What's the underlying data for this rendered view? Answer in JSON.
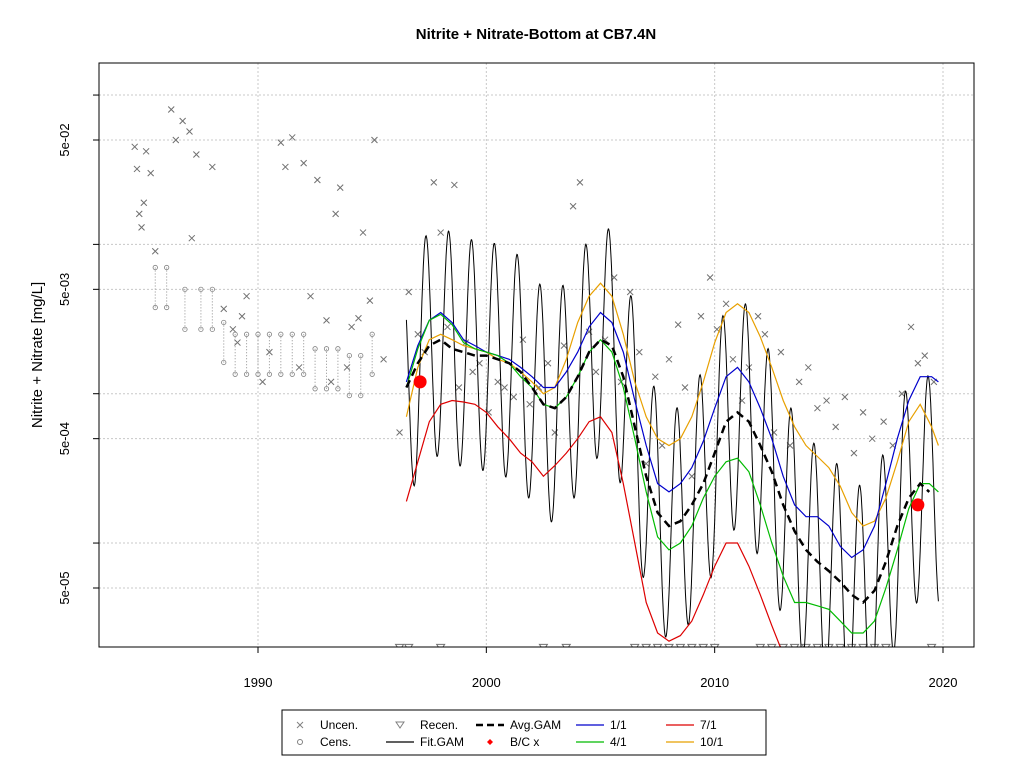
{
  "chart_data": {
    "type": "line",
    "title": "Nitrite + Nitrate-Bottom at CB7.4N",
    "ylabel": "Nitrite + Nitrate [mg/L]",
    "xlabel": "",
    "x_ticks": [
      1990,
      2000,
      2010,
      2020
    ],
    "y_ticks": [
      "5e-05",
      "5e-04",
      "5e-03",
      "5e-02"
    ],
    "y_scale": "log",
    "grid": true,
    "legend": [
      {
        "label": "Uncen.",
        "color": "#808080",
        "symbol": "x"
      },
      {
        "label": "Recen.",
        "color": "#808080",
        "symbol": "triangle-down"
      },
      {
        "label": "Avg.GAM",
        "color": "#000000",
        "symbol": "dash-thick"
      },
      {
        "label": "1/1",
        "color": "#0000cc",
        "symbol": "line"
      },
      {
        "label": "7/1",
        "color": "#dd0000",
        "symbol": "line"
      },
      {
        "label": "Cens.",
        "color": "#808080",
        "symbol": "circle"
      },
      {
        "label": "Fit.GAM",
        "color": "#000000",
        "symbol": "line"
      },
      {
        "label": "B/C x",
        "color": "#ff0000",
        "symbol": "diamond"
      },
      {
        "label": "4/1",
        "color": "#00bb00",
        "symbol": "line"
      },
      {
        "label": "10/1",
        "color": "#e8a000",
        "symbol": "line"
      }
    ],
    "uncensored": [
      [
        1984.6,
        0.045
      ],
      [
        1984.7,
        0.032
      ],
      [
        1984.8,
        0.016
      ],
      [
        1984.9,
        0.013
      ],
      [
        1985.0,
        0.019
      ],
      [
        1985.1,
        0.042
      ],
      [
        1985.3,
        0.03
      ],
      [
        1985.5,
        0.009
      ],
      [
        1986.2,
        0.08
      ],
      [
        1986.4,
        0.05
      ],
      [
        1986.7,
        0.067
      ],
      [
        1987.0,
        0.057
      ],
      [
        1987.1,
        0.011
      ],
      [
        1987.3,
        0.04
      ],
      [
        1988.0,
        0.033
      ],
      [
        1988.5,
        0.0037
      ],
      [
        1988.9,
        0.0027
      ],
      [
        1989.1,
        0.0022
      ],
      [
        1989.3,
        0.0033
      ],
      [
        1989.5,
        0.0045
      ],
      [
        1990.2,
        0.0012
      ],
      [
        1990.5,
        0.0019
      ],
      [
        1991.0,
        0.048
      ],
      [
        1991.2,
        0.033
      ],
      [
        1991.5,
        0.052
      ],
      [
        1991.8,
        0.0015
      ],
      [
        1992.0,
        0.035
      ],
      [
        1992.3,
        0.0045
      ],
      [
        1992.6,
        0.027
      ],
      [
        1993.0,
        0.0031
      ],
      [
        1993.2,
        0.0012
      ],
      [
        1993.4,
        0.016
      ],
      [
        1993.6,
        0.024
      ],
      [
        1993.9,
        0.0015
      ],
      [
        1994.1,
        0.0028
      ],
      [
        1994.4,
        0.0032
      ],
      [
        1994.6,
        0.012
      ],
      [
        1994.9,
        0.0042
      ],
      [
        1995.1,
        0.05
      ],
      [
        1995.5,
        0.0017
      ],
      [
        1996.2,
        0.00055
      ],
      [
        1996.6,
        0.0048
      ],
      [
        1997.0,
        0.0025
      ],
      [
        1997.3,
        0.0019
      ],
      [
        1997.7,
        0.026
      ],
      [
        1998.0,
        0.012
      ],
      [
        1998.3,
        0.0028
      ],
      [
        1998.6,
        0.025
      ],
      [
        1998.8,
        0.0011
      ],
      [
        1999.1,
        0.0022
      ],
      [
        1999.4,
        0.0014
      ],
      [
        1999.7,
        0.0016
      ],
      [
        2000.1,
        0.00075
      ],
      [
        2000.5,
        0.0012
      ],
      [
        2000.8,
        0.0011
      ],
      [
        2001.2,
        0.00095
      ],
      [
        2001.6,
        0.0023
      ],
      [
        2001.9,
        0.00085
      ],
      [
        2002.3,
        0.0011
      ],
      [
        2002.7,
        0.0016
      ],
      [
        2003.0,
        0.00055
      ],
      [
        2003.4,
        0.0021
      ],
      [
        2003.8,
        0.018
      ],
      [
        2004.1,
        0.026
      ],
      [
        2004.5,
        0.0026
      ],
      [
        2004.8,
        0.0014
      ],
      [
        2005.2,
        0.0023
      ],
      [
        2005.6,
        0.006
      ],
      [
        2005.9,
        0.0012
      ],
      [
        2006.3,
        0.0048
      ],
      [
        2006.7,
        0.0019
      ],
      [
        2007.0,
        0.00034
      ],
      [
        2007.4,
        0.0013
      ],
      [
        2007.7,
        0.00045
      ],
      [
        2008.0,
        0.0017
      ],
      [
        2008.4,
        0.0029
      ],
      [
        2008.7,
        0.0011
      ],
      [
        2009.0,
        0.00028
      ],
      [
        2009.4,
        0.0033
      ],
      [
        2009.8,
        0.006
      ],
      [
        2010.1,
        0.0027
      ],
      [
        2010.5,
        0.004
      ],
      [
        2010.8,
        0.0017
      ],
      [
        2011.2,
        0.0009
      ],
      [
        2011.5,
        0.0015
      ],
      [
        2011.9,
        0.0033
      ],
      [
        2012.2,
        0.0025
      ],
      [
        2012.6,
        0.00055
      ],
      [
        2012.9,
        0.0019
      ],
      [
        2013.3,
        0.00045
      ],
      [
        2013.7,
        0.0012
      ],
      [
        2014.1,
        0.0015
      ],
      [
        2014.5,
        0.0008
      ],
      [
        2014.9,
        0.0009
      ],
      [
        2015.3,
        0.0006
      ],
      [
        2015.7,
        0.00095
      ],
      [
        2016.1,
        0.0004
      ],
      [
        2016.5,
        0.00075
      ],
      [
        2016.9,
        0.0005
      ],
      [
        2017.4,
        0.00065
      ],
      [
        2017.8,
        0.00045
      ],
      [
        2018.2,
        0.001
      ],
      [
        2018.6,
        0.0028
      ],
      [
        2018.9,
        0.0016
      ],
      [
        2019.2,
        0.0018
      ],
      [
        2019.6,
        0.0012
      ]
    ],
    "censored": [
      [
        1985.5,
        0.007
      ],
      [
        1986.0,
        0.007
      ],
      [
        1986.8,
        0.005
      ],
      [
        1987.5,
        0.005
      ],
      [
        1988.0,
        0.005
      ],
      [
        1988.5,
        0.003
      ],
      [
        1989.0,
        0.0025
      ],
      [
        1989.5,
        0.0025
      ],
      [
        1990.0,
        0.0025
      ],
      [
        1990.5,
        0.0025
      ],
      [
        1991.0,
        0.0025
      ],
      [
        1991.5,
        0.0025
      ],
      [
        1992.0,
        0.0025
      ],
      [
        1992.5,
        0.002
      ],
      [
        1993.0,
        0.002
      ],
      [
        1993.5,
        0.002
      ],
      [
        1994.0,
        0.0018
      ],
      [
        1994.5,
        0.0018
      ],
      [
        1995.0,
        0.0025
      ]
    ],
    "recensored": [
      [
        1996.2,
        2e-05
      ],
      [
        1996.6,
        2e-05
      ],
      [
        1998.0,
        2e-05
      ],
      [
        2002.5,
        2e-05
      ],
      [
        2003.5,
        2e-05
      ],
      [
        2006.5,
        2e-05
      ],
      [
        2007.0,
        2e-05
      ],
      [
        2007.5,
        2e-05
      ],
      [
        2008.0,
        2e-05
      ],
      [
        2008.5,
        2e-05
      ],
      [
        2009.0,
        2e-05
      ],
      [
        2009.5,
        2e-05
      ],
      [
        2010.0,
        2e-05
      ],
      [
        2012.0,
        2e-05
      ],
      [
        2012.5,
        2e-05
      ],
      [
        2013.0,
        2e-05
      ],
      [
        2013.5,
        2e-05
      ],
      [
        2014.0,
        2e-05
      ],
      [
        2014.5,
        2e-05
      ],
      [
        2015.0,
        2e-05
      ],
      [
        2015.5,
        2e-05
      ],
      [
        2016.0,
        2e-05
      ],
      [
        2016.5,
        2e-05
      ],
      [
        2017.0,
        2e-05
      ],
      [
        2017.5,
        2e-05
      ],
      [
        2019.5,
        2e-05
      ]
    ],
    "avg_gam": [
      [
        1996.5,
        0.0011
      ],
      [
        1997.0,
        0.0016
      ],
      [
        1997.5,
        0.0021
      ],
      [
        1998.0,
        0.0023
      ],
      [
        1998.5,
        0.002
      ],
      [
        1999.0,
        0.0019
      ],
      [
        1999.5,
        0.0018
      ],
      [
        2000.0,
        0.0018
      ],
      [
        2000.5,
        0.0017
      ],
      [
        2001.0,
        0.0016
      ],
      [
        2001.5,
        0.0014
      ],
      [
        2002.0,
        0.0011
      ],
      [
        2002.5,
        0.00085
      ],
      [
        2003.0,
        0.0008
      ],
      [
        2003.5,
        0.00095
      ],
      [
        2004.0,
        0.0013
      ],
      [
        2004.5,
        0.0019
      ],
      [
        2005.0,
        0.0023
      ],
      [
        2005.5,
        0.0021
      ],
      [
        2006.0,
        0.0013
      ],
      [
        2006.5,
        0.0006
      ],
      [
        2007.0,
        0.00028
      ],
      [
        2007.5,
        0.00016
      ],
      [
        2008.0,
        0.00013
      ],
      [
        2008.5,
        0.00014
      ],
      [
        2009.0,
        0.00018
      ],
      [
        2009.5,
        0.00025
      ],
      [
        2010.0,
        0.0004
      ],
      [
        2010.5,
        0.00065
      ],
      [
        2011.0,
        0.00075
      ],
      [
        2011.5,
        0.00065
      ],
      [
        2012.0,
        0.00045
      ],
      [
        2012.5,
        0.0003
      ],
      [
        2013.0,
        0.00018
      ],
      [
        2013.5,
        0.00012
      ],
      [
        2014.0,
        9e-05
      ],
      [
        2014.5,
        7.5e-05
      ],
      [
        2015.0,
        6.5e-05
      ],
      [
        2015.5,
        5.5e-05
      ],
      [
        2016.0,
        4.5e-05
      ],
      [
        2016.5,
        4e-05
      ],
      [
        2017.0,
        4.8e-05
      ],
      [
        2017.5,
        7.5e-05
      ],
      [
        2018.0,
        0.00013
      ],
      [
        2018.5,
        0.0002
      ],
      [
        2019.0,
        0.00025
      ],
      [
        2019.4,
        0.00022
      ]
    ],
    "series_1_1": [
      [
        1996.5,
        0.0012
      ],
      [
        1997.0,
        0.0021
      ],
      [
        1997.5,
        0.0031
      ],
      [
        1998.0,
        0.0035
      ],
      [
        1998.5,
        0.003
      ],
      [
        1999.0,
        0.0023
      ],
      [
        1999.5,
        0.0021
      ],
      [
        2000.0,
        0.0019
      ],
      [
        2000.5,
        0.0018
      ],
      [
        2001.0,
        0.0017
      ],
      [
        2001.5,
        0.0015
      ],
      [
        2002.0,
        0.0013
      ],
      [
        2002.5,
        0.0011
      ],
      [
        2003.0,
        0.0011
      ],
      [
        2003.5,
        0.0014
      ],
      [
        2004.0,
        0.0019
      ],
      [
        2004.5,
        0.0028
      ],
      [
        2005.0,
        0.0035
      ],
      [
        2005.5,
        0.003
      ],
      [
        2006.0,
        0.0019
      ],
      [
        2006.5,
        0.0009
      ],
      [
        2007.0,
        0.00045
      ],
      [
        2007.5,
        0.00025
      ],
      [
        2008.0,
        0.00022
      ],
      [
        2008.5,
        0.00025
      ],
      [
        2009.0,
        0.00032
      ],
      [
        2009.5,
        0.00048
      ],
      [
        2010.0,
        0.0008
      ],
      [
        2010.5,
        0.0013
      ],
      [
        2011.0,
        0.0015
      ],
      [
        2011.5,
        0.0012
      ],
      [
        2012.0,
        0.0008
      ],
      [
        2012.5,
        0.0005
      ],
      [
        2013.0,
        0.00028
      ],
      [
        2013.5,
        0.00018
      ],
      [
        2014.0,
        0.00015
      ],
      [
        2014.5,
        0.00015
      ],
      [
        2015.0,
        0.00013
      ],
      [
        2015.5,
        9.5e-05
      ],
      [
        2016.0,
        8e-05
      ],
      [
        2016.5,
        9e-05
      ],
      [
        2017.0,
        0.00013
      ],
      [
        2017.5,
        0.00025
      ],
      [
        2018.0,
        0.0005
      ],
      [
        2018.5,
        0.0009
      ],
      [
        2019.0,
        0.0013
      ],
      [
        2019.5,
        0.0013
      ],
      [
        2019.8,
        0.0012
      ]
    ],
    "series_4_1": [
      [
        1996.5,
        0.0011
      ],
      [
        1997.0,
        0.002
      ],
      [
        1997.5,
        0.0031
      ],
      [
        1998.0,
        0.0034
      ],
      [
        1998.5,
        0.0029
      ],
      [
        1999.0,
        0.0022
      ],
      [
        1999.5,
        0.002
      ],
      [
        2000.0,
        0.0019
      ],
      [
        2000.5,
        0.0018
      ],
      [
        2001.0,
        0.0016
      ],
      [
        2001.5,
        0.0013
      ],
      [
        2002.0,
        0.0011
      ],
      [
        2002.5,
        0.00085
      ],
      [
        2003.0,
        0.0008
      ],
      [
        2003.5,
        0.00095
      ],
      [
        2004.0,
        0.0013
      ],
      [
        2004.5,
        0.0019
      ],
      [
        2005.0,
        0.0023
      ],
      [
        2005.5,
        0.0019
      ],
      [
        2006.0,
        0.0011
      ],
      [
        2006.5,
        0.0005
      ],
      [
        2007.0,
        0.00022
      ],
      [
        2007.5,
        0.00011
      ],
      [
        2008.0,
        9e-05
      ],
      [
        2008.5,
        0.0001
      ],
      [
        2009.0,
        0.00013
      ],
      [
        2009.5,
        0.0002
      ],
      [
        2010.0,
        0.00028
      ],
      [
        2010.5,
        0.00035
      ],
      [
        2011.0,
        0.00037
      ],
      [
        2011.5,
        0.0003
      ],
      [
        2012.0,
        0.00018
      ],
      [
        2012.5,
        0.0001
      ],
      [
        2013.0,
        6e-05
      ],
      [
        2013.5,
        4e-05
      ],
      [
        2014.0,
        4e-05
      ],
      [
        2014.5,
        3.8e-05
      ],
      [
        2015.0,
        3.6e-05
      ],
      [
        2015.5,
        3e-05
      ],
      [
        2016.0,
        2.5e-05
      ],
      [
        2016.5,
        2.5e-05
      ],
      [
        2017.0,
        3e-05
      ],
      [
        2017.5,
        5e-05
      ],
      [
        2018.0,
        9e-05
      ],
      [
        2018.5,
        0.00017
      ],
      [
        2019.0,
        0.00025
      ],
      [
        2019.4,
        0.00025
      ],
      [
        2019.8,
        0.00022
      ]
    ],
    "series_7_1": [
      [
        1996.5,
        0.00019
      ],
      [
        1997.0,
        0.00035
      ],
      [
        1997.5,
        0.00065
      ],
      [
        1998.0,
        0.00085
      ],
      [
        1998.5,
        0.0009
      ],
      [
        1999.0,
        0.00088
      ],
      [
        1999.5,
        0.00085
      ],
      [
        2000.0,
        0.00075
      ],
      [
        2000.5,
        0.0006
      ],
      [
        2001.0,
        0.0005
      ],
      [
        2001.5,
        0.0004
      ],
      [
        2002.0,
        0.00035
      ],
      [
        2002.5,
        0.00028
      ],
      [
        2003.0,
        0.00033
      ],
      [
        2003.5,
        0.0004
      ],
      [
        2004.0,
        0.0005
      ],
      [
        2004.5,
        0.00065
      ],
      [
        2005.0,
        0.0007
      ],
      [
        2005.5,
        0.00055
      ],
      [
        2006.0,
        0.00025
      ],
      [
        2006.5,
        0.0001
      ],
      [
        2007.0,
        4e-05
      ],
      [
        2007.5,
        2.5e-05
      ],
      [
        2008.0,
        2.2e-05
      ],
      [
        2008.5,
        2.4e-05
      ],
      [
        2009.0,
        3e-05
      ],
      [
        2009.5,
        4.5e-05
      ],
      [
        2010.0,
        7e-05
      ],
      [
        2010.5,
        0.0001
      ],
      [
        2011.0,
        0.0001
      ],
      [
        2011.5,
        7e-05
      ],
      [
        2012.0,
        4.5e-05
      ],
      [
        2012.5,
        2.8e-05
      ],
      [
        2013.0,
        1.8e-05
      ],
      [
        2013.5,
        1.2e-05
      ]
    ],
    "series_10_1": [
      [
        1996.5,
        0.0007
      ],
      [
        1997.0,
        0.0015
      ],
      [
        1997.5,
        0.0023
      ],
      [
        1998.0,
        0.0025
      ],
      [
        1998.5,
        0.0023
      ],
      [
        1999.0,
        0.0021
      ],
      [
        1999.5,
        0.002
      ],
      [
        2000.0,
        0.0019
      ],
      [
        2000.5,
        0.0017
      ],
      [
        2001.0,
        0.0016
      ],
      [
        2001.5,
        0.0014
      ],
      [
        2002.0,
        0.0012
      ],
      [
        2002.5,
        0.001
      ],
      [
        2003.0,
        0.0011
      ],
      [
        2003.5,
        0.0017
      ],
      [
        2004.0,
        0.003
      ],
      [
        2004.5,
        0.0045
      ],
      [
        2005.0,
        0.0055
      ],
      [
        2005.5,
        0.0045
      ],
      [
        2006.0,
        0.0025
      ],
      [
        2006.5,
        0.0012
      ],
      [
        2007.0,
        0.0007
      ],
      [
        2007.5,
        0.0005
      ],
      [
        2008.0,
        0.00045
      ],
      [
        2008.5,
        0.0005
      ],
      [
        2009.0,
        0.0007
      ],
      [
        2009.5,
        0.0012
      ],
      [
        2010.0,
        0.0022
      ],
      [
        2010.5,
        0.0035
      ],
      [
        2011.0,
        0.004
      ],
      [
        2011.5,
        0.0035
      ],
      [
        2012.0,
        0.0024
      ],
      [
        2012.5,
        0.0015
      ],
      [
        2013.0,
        0.0009
      ],
      [
        2013.5,
        0.0006
      ],
      [
        2014.0,
        0.00045
      ],
      [
        2014.5,
        0.00038
      ],
      [
        2015.0,
        0.00032
      ],
      [
        2015.5,
        0.00024
      ],
      [
        2016.0,
        0.00016
      ],
      [
        2016.5,
        0.00013
      ],
      [
        2017.0,
        0.00014
      ],
      [
        2017.5,
        0.0002
      ],
      [
        2018.0,
        0.00035
      ],
      [
        2018.5,
        0.00065
      ],
      [
        2019.0,
        0.00085
      ],
      [
        2019.5,
        0.0006
      ],
      [
        2019.8,
        0.00045
      ]
    ],
    "bc_points": [
      [
        1997.1,
        0.0012
      ],
      [
        2018.9,
        0.00018
      ]
    ],
    "fit_gam_params": {
      "start": 1996.5,
      "end": 2019.8,
      "amp_decades": 0.55
    }
  }
}
